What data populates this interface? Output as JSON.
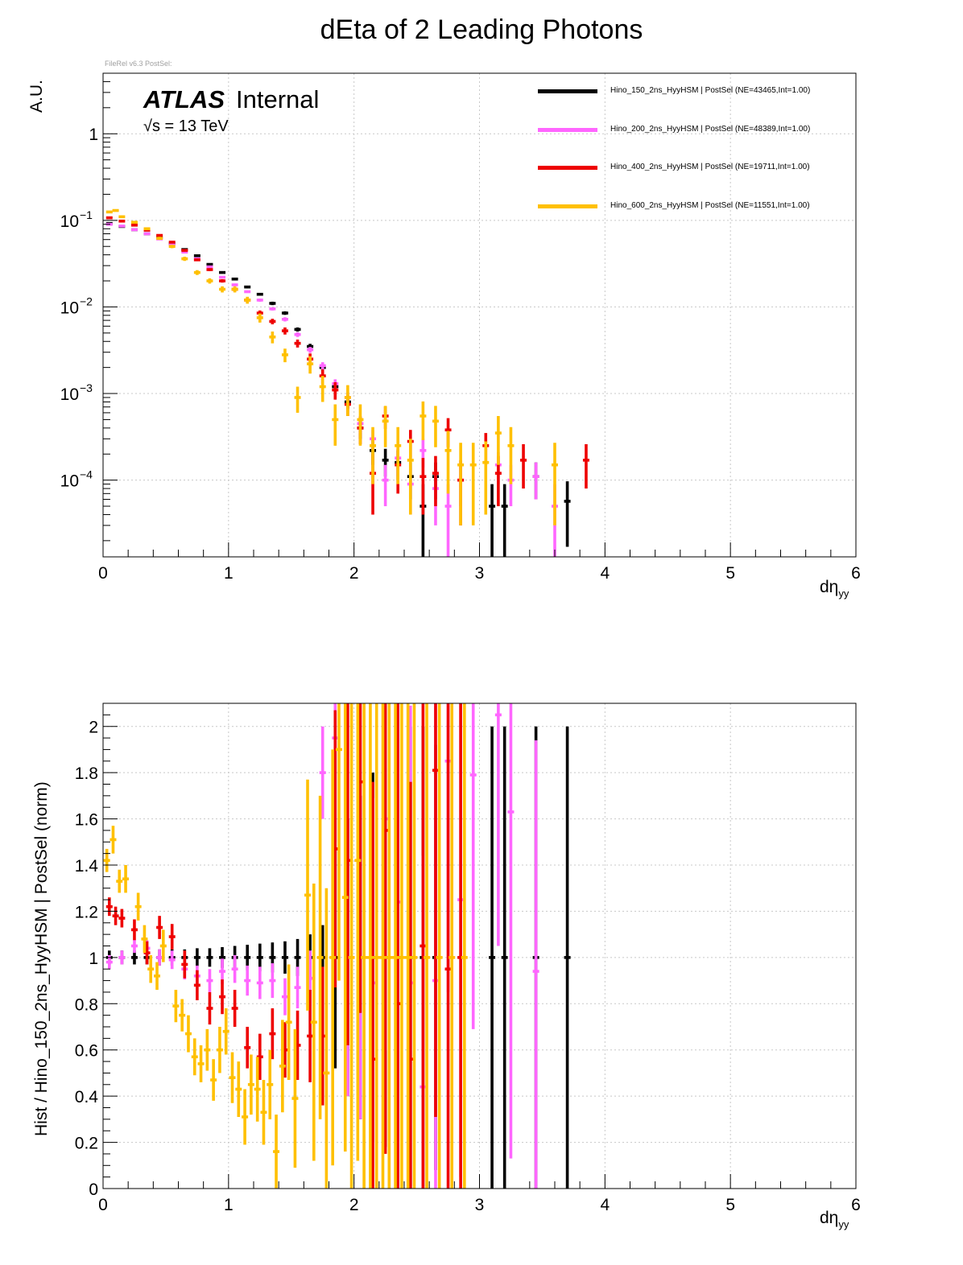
{
  "page": {
    "title": "dEta of 2 Leading Photons",
    "file_tag": "FileRel v6.3 PostSel:",
    "atlas_label": "ATLAS",
    "atlas_status": "Internal",
    "energy_label": "√s = 13 TeV"
  },
  "legend": {
    "items": [
      {
        "name": "Hino_150_2ns_HyyHSM | PostSel   (NE=43465,Int=1.00)",
        "color": "#000000"
      },
      {
        "name": "Hino_200_2ns_HyyHSM | PostSel   (NE=48389,Int=1.00)",
        "color": "#ff66ff"
      },
      {
        "name": "Hino_400_2ns_HyyHSM | PostSel   (NE=19711,Int=1.00)",
        "color": "#ee0000"
      },
      {
        "name": "Hino_600_2ns_HyyHSM | PostSel   (NE=11551,Int=1.00)",
        "color": "#ffc000"
      }
    ]
  },
  "chart_data": [
    {
      "type": "scatter",
      "title": "dEta of 2 Leading Photons",
      "xlabel": "dη",
      "xlabel_sub": "yy",
      "ylabel": "A.U.",
      "xlim": [
        0,
        6
      ],
      "ylim": [
        1.3e-05,
        5
      ],
      "yscale": "log",
      "grid": true,
      "legend_position": "top-right",
      "xticks": [
        "0",
        "1",
        "2",
        "3",
        "4",
        "5",
        "6"
      ],
      "yticks": [
        {
          "base": "1",
          "exp": ""
        },
        {
          "base": "10",
          "exp": "−1"
        },
        {
          "base": "10",
          "exp": "−2"
        },
        {
          "base": "10",
          "exp": "−3"
        },
        {
          "base": "10",
          "exp": "−4"
        }
      ],
      "series": [
        {
          "name": "Hino_150_2ns_HyyHSM",
          "color": "#000000",
          "x": [
            0.05,
            0.15,
            0.25,
            0.35,
            0.45,
            0.55,
            0.65,
            0.75,
            0.85,
            0.95,
            1.05,
            1.15,
            1.25,
            1.35,
            1.45,
            1.55,
            1.65,
            1.75,
            1.85,
            1.95,
            2.05,
            2.15,
            2.25,
            2.35,
            2.45,
            2.55,
            2.65,
            3.1,
            3.2,
            3.45,
            3.7
          ],
          "y": [
            0.092,
            0.085,
            0.078,
            0.07,
            0.063,
            0.054,
            0.046,
            0.039,
            0.031,
            0.025,
            0.021,
            0.017,
            0.014,
            0.011,
            0.0085,
            0.0055,
            0.0035,
            0.002,
            0.0012,
            0.0008,
            0.0004,
            0.00022,
            0.00017,
            0.00016,
            0.00011,
            5e-05,
            0.00011,
            5e-05,
            5e-05,
            0.00011,
            5.7e-05
          ],
          "err": [
            0.0015,
            0.0014,
            0.0013,
            0.0013,
            0.0012,
            0.0011,
            0.001,
            0.0009,
            0.0008,
            0.0007,
            0.0007,
            0.0006,
            0.0005,
            0.0005,
            0.0004,
            0.0003,
            0.00025,
            0.0002,
            0.00016,
            0.00013,
            0.0001,
            7e-05,
            6e-05,
            6e-05,
            5e-05,
            4e-05,
            5e-05,
            4e-05,
            4e-05,
            5e-05,
            4e-05
          ]
        },
        {
          "name": "Hino_200_2ns_HyyHSM",
          "color": "#ff66ff",
          "x": [
            0.05,
            0.15,
            0.25,
            0.35,
            0.45,
            0.55,
            0.65,
            0.75,
            0.85,
            0.95,
            1.05,
            1.15,
            1.25,
            1.35,
            1.45,
            1.55,
            1.65,
            1.75,
            1.85,
            1.95,
            2.05,
            2.15,
            2.25,
            2.35,
            2.45,
            2.55,
            2.65,
            2.75,
            2.85,
            3.15,
            3.25,
            3.45,
            3.6
          ],
          "y": [
            0.09,
            0.086,
            0.078,
            0.07,
            0.061,
            0.052,
            0.043,
            0.036,
            0.029,
            0.022,
            0.018,
            0.015,
            0.012,
            0.0095,
            0.0072,
            0.0048,
            0.0032,
            0.0021,
            0.0013,
            0.0009,
            0.00045,
            0.0003,
            0.0001,
            0.00018,
            9e-05,
            0.00022,
            8e-05,
            5e-05,
            0.0001,
            0.00015,
            0.0001,
            0.00011,
            5e-05
          ],
          "err": [
            0.0014,
            0.0013,
            0.0013,
            0.0012,
            0.0011,
            0.001,
            0.0009,
            0.0008,
            0.0007,
            0.0006,
            0.0006,
            0.0005,
            0.0005,
            0.0004,
            0.0004,
            0.0003,
            0.00025,
            0.0002,
            0.00016,
            0.00013,
            0.0001,
            8e-05,
            5e-05,
            7e-05,
            5e-05,
            8e-05,
            5e-05,
            4e-05,
            5e-05,
            6e-05,
            5e-05,
            5e-05,
            4e-05
          ]
        },
        {
          "name": "Hino_400_2ns_HyyHSM",
          "color": "#ee0000",
          "x": [
            0.05,
            0.15,
            0.25,
            0.35,
            0.45,
            0.55,
            0.65,
            0.75,
            0.85,
            0.95,
            1.05,
            1.15,
            1.25,
            1.35,
            1.45,
            1.55,
            1.65,
            1.75,
            1.85,
            1.95,
            2.05,
            2.15,
            2.25,
            2.35,
            2.45,
            2.55,
            2.65,
            2.75,
            2.85,
            3.05,
            3.15,
            3.35,
            3.85
          ],
          "y": [
            0.107,
            0.098,
            0.088,
            0.077,
            0.067,
            0.056,
            0.045,
            0.035,
            0.027,
            0.02,
            0.016,
            0.012,
            0.0085,
            0.0068,
            0.0053,
            0.0038,
            0.0025,
            0.0016,
            0.0011,
            0.00075,
            0.0004,
            0.00012,
            0.00055,
            0.00015,
            0.00028,
            0.00011,
            0.00012,
            0.00038,
            0.0001,
            0.00025,
            0.00012,
            0.00017,
            0.00017
          ],
          "err": [
            0.002,
            0.0019,
            0.0018,
            0.0017,
            0.0016,
            0.0015,
            0.0013,
            0.0012,
            0.001,
            0.0009,
            0.0008,
            0.0007,
            0.0006,
            0.0005,
            0.0005,
            0.0004,
            0.0004,
            0.0003,
            0.00025,
            0.0002,
            0.00014,
            8e-05,
            0.00016,
            8e-05,
            0.0001,
            7e-05,
            7e-05,
            0.00014,
            7e-05,
            0.0001,
            7e-05,
            9e-05,
            9e-05
          ]
        },
        {
          "name": "Hino_600_2ns_HyyHSM",
          "color": "#ffc000",
          "x": [
            0.05,
            0.1,
            0.15,
            0.25,
            0.35,
            0.45,
            0.55,
            0.65,
            0.75,
            0.85,
            0.95,
            1.05,
            1.15,
            1.25,
            1.35,
            1.45,
            1.55,
            1.65,
            1.75,
            1.85,
            1.95,
            2.05,
            2.15,
            2.25,
            2.35,
            2.45,
            2.55,
            2.65,
            2.75,
            2.85,
            2.95,
            3.05,
            3.15,
            3.25,
            3.6
          ],
          "y": [
            0.125,
            0.13,
            0.11,
            0.095,
            0.08,
            0.062,
            0.05,
            0.036,
            0.025,
            0.02,
            0.016,
            0.016,
            0.012,
            0.0075,
            0.0045,
            0.0028,
            0.0009,
            0.0022,
            0.0012,
            0.0005,
            0.0009,
            0.0005,
            0.00025,
            0.00048,
            0.00025,
            0.00017,
            0.00055,
            0.00048,
            0.00022,
            0.00015,
            0.00015,
            0.00016,
            0.00035,
            0.00025,
            0.00015
          ],
          "err": [
            0.004,
            0.004,
            0.0037,
            0.0034,
            0.003,
            0.0026,
            0.0023,
            0.002,
            0.0016,
            0.0014,
            0.0013,
            0.0013,
            0.0011,
            0.0009,
            0.0007,
            0.0005,
            0.0003,
            0.0005,
            0.0004,
            0.00025,
            0.00035,
            0.00025,
            0.00016,
            0.00024,
            0.00016,
            0.00013,
            0.00026,
            0.00024,
            0.00015,
            0.00012,
            0.00012,
            0.00012,
            0.0002,
            0.00016,
            0.00012
          ]
        }
      ]
    },
    {
      "type": "scatter",
      "xlabel": "dη",
      "xlabel_sub": "yy",
      "ylabel": "Hist / Hino_150_2ns_HyyHSM | PostSel   (norm)",
      "xlim": [
        0,
        6
      ],
      "ylim": [
        0,
        2.1
      ],
      "grid": true,
      "xticks": [
        "0",
        "1",
        "2",
        "3",
        "4",
        "5",
        "6"
      ],
      "yticks": [
        "0",
        "0.2",
        "0.4",
        "0.6",
        "0.8",
        "1",
        "1.2",
        "1.4",
        "1.6",
        "1.8",
        "2"
      ],
      "series": [
        {
          "name": "Hino_150_2ns_HyyHSM",
          "color": "#000000",
          "x": [
            0.05,
            0.15,
            0.25,
            0.35,
            0.45,
            0.55,
            0.65,
            0.75,
            0.85,
            0.95,
            1.05,
            1.15,
            1.25,
            1.35,
            1.45,
            1.55,
            1.65,
            1.75,
            1.85,
            1.95,
            2.05,
            2.15,
            2.25,
            2.35,
            2.45,
            2.55,
            2.65,
            3.1,
            3.2,
            3.45,
            3.7
          ],
          "y": [
            1,
            1,
            1,
            1,
            1,
            1,
            1,
            1,
            1,
            1,
            1,
            1,
            1,
            1,
            1,
            1,
            1,
            1,
            1,
            1,
            1,
            1,
            1,
            1,
            1,
            1,
            1,
            1,
            1,
            1,
            1
          ],
          "err": [
            0.03,
            0.03,
            0.03,
            0.03,
            0.035,
            0.035,
            0.035,
            0.04,
            0.04,
            0.045,
            0.05,
            0.055,
            0.06,
            0.065,
            0.07,
            0.08,
            0.1,
            0.14,
            0.48,
            0.6,
            0.7,
            0.8,
            0.82,
            0.95,
            1.0,
            1.0,
            0.92,
            1.0,
            1.0,
            1.0,
            1.0
          ]
        },
        {
          "name": "Hino_200_2ns_HyyHSM",
          "color": "#ff66ff",
          "x": [
            0.05,
            0.15,
            0.25,
            0.35,
            0.45,
            0.55,
            0.65,
            0.75,
            0.85,
            0.95,
            1.05,
            1.15,
            1.25,
            1.35,
            1.45,
            1.55,
            1.65,
            1.75,
            1.85,
            1.95,
            2.05,
            2.15,
            2.25,
            2.35,
            2.45,
            2.55,
            2.65,
            2.75,
            2.85,
            2.95,
            3.15,
            3.25,
            3.45
          ],
          "y": [
            0.98,
            1.0,
            1.05,
            1.04,
            1.0,
            0.99,
            0.95,
            0.92,
            0.9,
            0.94,
            0.95,
            0.9,
            0.89,
            0.9,
            0.83,
            0.87,
            0.91,
            1.8,
            1.95,
            1.0,
            1.0,
            0.89,
            1.6,
            1.24,
            0.89,
            0.44,
            0.9,
            1.85,
            1.25,
            1.79,
            2.05,
            1.63,
            0.94
          ],
          "err": [
            0.03,
            0.03,
            0.03,
            0.035,
            0.035,
            0.04,
            0.045,
            0.045,
            0.05,
            0.055,
            0.06,
            0.065,
            0.07,
            0.075,
            0.08,
            0.09,
            0.12,
            0.2,
            0.45,
            0.6,
            0.7,
            0.8,
            1.0,
            1.2,
            1.2,
            1.0,
            1.2,
            1.0,
            1.2,
            1.1,
            1.0,
            1.5,
            1.0
          ]
        },
        {
          "name": "Hino_400_2ns_HyyHSM",
          "color": "#ee0000",
          "x": [
            0.05,
            0.1,
            0.15,
            0.25,
            0.35,
            0.45,
            0.55,
            0.65,
            0.75,
            0.85,
            0.95,
            1.05,
            1.15,
            1.25,
            1.35,
            1.45,
            1.55,
            1.65,
            1.75,
            1.85,
            1.95,
            2.05,
            2.15,
            2.25,
            2.35,
            2.45,
            2.55,
            2.65,
            2.75,
            2.85
          ],
          "y": [
            1.22,
            1.18,
            1.17,
            1.12,
            1.02,
            1.13,
            1.09,
            0.97,
            0.88,
            0.78,
            0.83,
            0.78,
            0.61,
            0.57,
            0.67,
            0.6,
            0.62,
            0.66,
            0.66,
            1.47,
            1.42,
            1.76,
            0.56,
            1.55,
            0.8,
            0.56,
            1.05,
            1.81,
            0.95,
            1.0
          ],
          "err": [
            0.04,
            0.04,
            0.04,
            0.045,
            0.05,
            0.05,
            0.055,
            0.06,
            0.065,
            0.07,
            0.075,
            0.08,
            0.09,
            0.1,
            0.11,
            0.12,
            0.15,
            0.2,
            0.3,
            0.6,
            0.8,
            1.0,
            1.2,
            1.4,
            1.4,
            1.2,
            1.2,
            1.5,
            1.4,
            1.5
          ]
        },
        {
          "name": "Hino_600_2ns_HyyHSM",
          "color": "#ffc000",
          "x": [
            0.03,
            0.08,
            0.13,
            0.18,
            0.28,
            0.33,
            0.38,
            0.43,
            0.48,
            0.58,
            0.63,
            0.68,
            0.73,
            0.78,
            0.83,
            0.88,
            0.93,
            0.98,
            1.03,
            1.08,
            1.13,
            1.18,
            1.23,
            1.28,
            1.33,
            1.38,
            1.43,
            1.48,
            1.53,
            1.63,
            1.68,
            1.73,
            1.78,
            1.83,
            1.88,
            1.93,
            1.98,
            2.03,
            2.08,
            2.13,
            2.18,
            2.23,
            2.28,
            2.33,
            2.38,
            2.43,
            2.48,
            2.58,
            2.68,
            2.78,
            2.88
          ],
          "y": [
            1.42,
            1.51,
            1.33,
            1.34,
            1.22,
            1.08,
            0.95,
            0.92,
            1.05,
            0.79,
            0.75,
            0.67,
            0.57,
            0.54,
            0.6,
            0.47,
            0.6,
            0.68,
            0.48,
            0.43,
            0.31,
            0.45,
            0.43,
            0.33,
            0.45,
            0.16,
            0.53,
            0.72,
            0.39,
            1.27,
            0.72,
            1.0,
            0.5,
            1.0,
            1.9,
            1.26,
            1.0,
            1.42,
            1.0,
            1.0,
            1.0,
            1.0,
            1.0,
            1.0,
            1.0,
            1.0,
            1.0,
            1.0,
            1.0,
            1.0,
            1.0
          ],
          "err": [
            0.05,
            0.06,
            0.05,
            0.06,
            0.06,
            0.06,
            0.06,
            0.06,
            0.07,
            0.07,
            0.07,
            0.08,
            0.08,
            0.08,
            0.09,
            0.09,
            0.1,
            0.1,
            0.11,
            0.12,
            0.12,
            0.13,
            0.14,
            0.14,
            0.15,
            0.16,
            0.2,
            0.25,
            0.3,
            0.5,
            0.6,
            0.7,
            0.8,
            0.9,
            1.0,
            1.1,
            1.2,
            1.3,
            1.4,
            1.5,
            1.5,
            1.5,
            1.5,
            1.5,
            1.5,
            1.5,
            1.5,
            1.5,
            1.5,
            1.5,
            1.5
          ]
        }
      ]
    }
  ]
}
